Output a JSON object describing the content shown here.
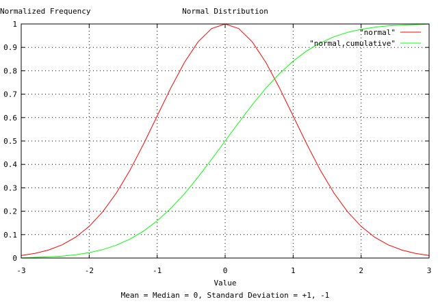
{
  "chart_data": {
    "type": "line",
    "title": "Normal Distribution",
    "ylabel": "Normalized Frequency",
    "xlabel": "Value",
    "caption": "Mean = Median = 0, Standard Deviation = +1, -1",
    "xlim": [
      -3,
      3
    ],
    "ylim": [
      0,
      1
    ],
    "x_ticks": [
      -3,
      -2,
      -1,
      0,
      1,
      2,
      3
    ],
    "y_ticks": [
      0,
      0.1,
      0.2,
      0.3,
      0.4,
      0.5,
      0.6,
      0.7,
      0.8,
      0.9,
      1
    ],
    "grid": true,
    "legend_position": "top-right",
    "x": [
      -3,
      -2.8,
      -2.6,
      -2.4,
      -2.2,
      -2,
      -1.8,
      -1.6,
      -1.4,
      -1.2,
      -1,
      -0.8,
      -0.6,
      -0.4,
      -0.2,
      0,
      0.2,
      0.4,
      0.6,
      0.8,
      1,
      1.2,
      1.4,
      1.6,
      1.8,
      2,
      2.2,
      2.4,
      2.6,
      2.8,
      3
    ],
    "series": [
      {
        "name": "\"normal\"",
        "color": "#ff0000",
        "values": [
          0.011,
          0.02,
          0.034,
          0.056,
          0.089,
          0.135,
          0.198,
          0.278,
          0.375,
          0.487,
          0.607,
          0.726,
          0.835,
          0.923,
          0.98,
          1.0,
          0.98,
          0.923,
          0.835,
          0.726,
          0.607,
          0.487,
          0.375,
          0.278,
          0.198,
          0.135,
          0.089,
          0.056,
          0.034,
          0.02,
          0.011
        ]
      },
      {
        "name": "\"normal,cumulative\"",
        "color": "#00ff00",
        "values": [
          0.001,
          0.003,
          0.005,
          0.008,
          0.014,
          0.023,
          0.036,
          0.055,
          0.081,
          0.115,
          0.159,
          0.212,
          0.274,
          0.345,
          0.421,
          0.5,
          0.579,
          0.655,
          0.726,
          0.788,
          0.841,
          0.885,
          0.919,
          0.945,
          0.964,
          0.977,
          0.986,
          0.992,
          0.995,
          0.997,
          0.999
        ]
      }
    ]
  }
}
